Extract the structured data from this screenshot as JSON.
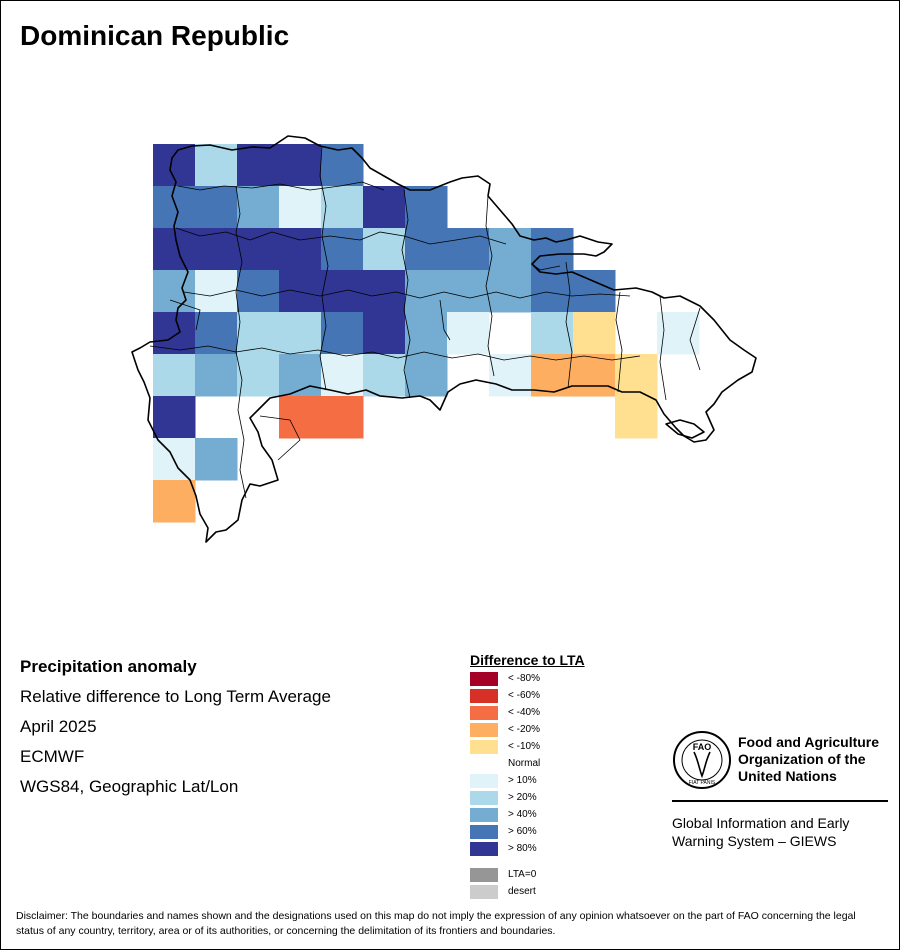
{
  "title": "Dominican Republic",
  "info": {
    "heading": "Precipitation anomaly",
    "description": "Relative difference to Long Term Average",
    "period": "April 2025",
    "source": "ECMWF",
    "projection": "WGS84, Geographic Lat/Lon"
  },
  "legend": {
    "title": "Difference to LTA",
    "items": [
      {
        "label": "< -80%",
        "color": "#a50026"
      },
      {
        "label": "< -60%",
        "color": "#d73027"
      },
      {
        "label": "< -40%",
        "color": "#f46d43"
      },
      {
        "label": "< -20%",
        "color": "#fdae61"
      },
      {
        "label": "< -10%",
        "color": "#fee090"
      },
      {
        "label": "Normal",
        "color": "#ffffff"
      },
      {
        "label": "> 10%",
        "color": "#e0f3f8"
      },
      {
        "label": "> 20%",
        "color": "#abd9e9"
      },
      {
        "label": "> 40%",
        "color": "#74add1"
      },
      {
        "label": "> 60%",
        "color": "#4575b4"
      },
      {
        "label": "> 80%",
        "color": "#313695"
      },
      {
        "label": "LTA=0",
        "color": "#969696"
      },
      {
        "label": "desert",
        "color": "#cccccc"
      }
    ]
  },
  "grid_classes": [
    [
      "",
      "",
      "",
      "",
      "",
      "",
      "",
      "",
      "",
      "",
      "",
      "",
      "",
      "",
      ""
    ],
    [
      "",
      "",
      "",
      "",
      "",
      "",
      "",
      "",
      "",
      "",
      "",
      "",
      "",
      "",
      ""
    ],
    [
      "> 80%",
      "> 20%",
      "> 80%",
      "> 80%",
      "> 60%",
      "",
      "",
      "",
      "",
      "",
      "",
      "",
      "",
      "",
      ""
    ],
    [
      "> 60%",
      "> 60%",
      "> 40%",
      "> 10%",
      "> 20%",
      "> 80%",
      "> 60%",
      "",
      "",
      "",
      "",
      "",
      "",
      "",
      ""
    ],
    [
      "> 80%",
      "> 80%",
      "> 80%",
      "> 80%",
      "> 60%",
      "> 20%",
      "> 60%",
      "> 60%",
      "> 40%",
      "> 60%",
      "",
      "",
      "",
      "",
      ""
    ],
    [
      "> 40%",
      "> 10%",
      "> 60%",
      "> 80%",
      "> 80%",
      "> 80%",
      "> 40%",
      "> 40%",
      "> 40%",
      "> 60%",
      "> 60%",
      "",
      "",
      "",
      ""
    ],
    [
      "> 80%",
      "> 60%",
      "> 20%",
      "> 20%",
      "> 60%",
      "> 80%",
      "> 40%",
      "> 10%",
      "",
      "> 20%",
      "< -10%",
      "",
      "> 10%",
      "",
      ""
    ],
    [
      "> 20%",
      "> 40%",
      "> 20%",
      "> 40%",
      "> 10%",
      "> 20%",
      "> 40%",
      "",
      "> 10%",
      "< -20%",
      "< -20%",
      "< -10%",
      "",
      "",
      ""
    ],
    [
      "> 80%",
      "",
      "",
      "< -40%",
      "< -40%",
      "",
      "",
      "",
      "",
      "",
      "",
      "< -10%",
      "",
      "",
      ""
    ],
    [
      "> 10%",
      "> 40%",
      "",
      "",
      "",
      "",
      "",
      "",
      "",
      "",
      "",
      "",
      "",
      "",
      ""
    ],
    [
      "< -20%",
      "",
      "",
      "",
      "",
      "",
      "",
      "",
      "",
      "",
      "",
      "",
      "",
      "",
      ""
    ]
  ],
  "fao": {
    "name": "Food and Agriculture Organization of the United Nations",
    "system": "Global Information and Early Warning System – GIEWS",
    "logo_text": "FAO",
    "motto": "FIAT PANIS"
  },
  "disclaimer": "Disclaimer: The boundaries and names shown and the designations used on this map do not imply the expression of any opinion whatsoever on the part of FAO concerning the legal status of any country, territory, area or of its authorities, or concerning the delimitation of its frontiers and boundaries."
}
